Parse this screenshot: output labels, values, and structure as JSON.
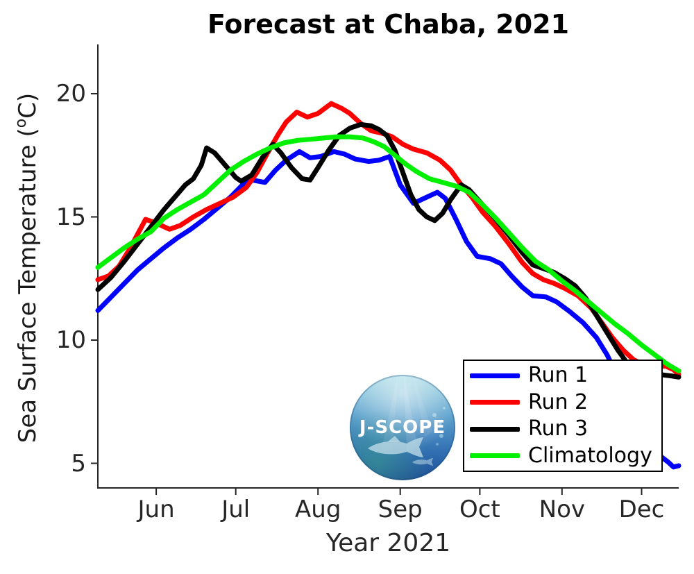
{
  "labels": {
    "ylabel_pre": "Sea Surface Temperature (",
    "ylabel_sup": "o",
    "ylabel_post": "C)"
  },
  "logo": {
    "text": "J-SCOPE"
  },
  "chart_data": {
    "type": "line",
    "title": "Forecast at Chaba, 2021",
    "xlabel": "Year 2021",
    "ylabel": "Sea Surface Temperature (°C)",
    "grid": false,
    "legend_position": "lower right",
    "axis_color": "#262626",
    "x_axis": {
      "unit": "day index (0 = left edge of axis, about May 10, 2021)",
      "lim": [
        0,
        219
      ],
      "ticks": [
        {
          "label": "Jun",
          "day": 22
        },
        {
          "label": "Jul",
          "day": 52
        },
        {
          "label": "Aug",
          "day": 83
        },
        {
          "label": "Sep",
          "day": 114
        },
        {
          "label": "Oct",
          "day": 144
        },
        {
          "label": "Nov",
          "day": 175
        },
        {
          "label": "Dec",
          "day": 205
        }
      ]
    },
    "y_axis": {
      "lim": [
        4,
        22
      ],
      "ticks": [
        20,
        15,
        10,
        5
      ]
    },
    "series": [
      {
        "name": "Run 1",
        "color": "#0000ff",
        "points": [
          [
            0,
            11.2
          ],
          [
            5,
            11.75
          ],
          [
            10,
            12.3
          ],
          [
            15,
            12.85
          ],
          [
            20,
            13.3
          ],
          [
            25,
            13.75
          ],
          [
            30,
            14.15
          ],
          [
            35,
            14.5
          ],
          [
            40,
            14.9
          ],
          [
            45,
            15.35
          ],
          [
            50,
            15.8
          ],
          [
            55,
            16.35
          ],
          [
            58,
            16.5
          ],
          [
            63,
            16.4
          ],
          [
            67,
            16.9
          ],
          [
            71,
            17.3
          ],
          [
            76,
            17.65
          ],
          [
            80,
            17.4
          ],
          [
            84,
            17.45
          ],
          [
            89,
            17.65
          ],
          [
            93,
            17.55
          ],
          [
            97,
            17.35
          ],
          [
            102,
            17.25
          ],
          [
            106,
            17.3
          ],
          [
            110,
            17.45
          ],
          [
            114,
            16.3
          ],
          [
            119,
            15.55
          ],
          [
            124,
            15.8
          ],
          [
            128,
            16.0
          ],
          [
            131,
            15.75
          ],
          [
            135,
            14.9
          ],
          [
            139,
            14.0
          ],
          [
            143,
            13.4
          ],
          [
            148,
            13.3
          ],
          [
            152,
            13.1
          ],
          [
            156,
            12.6
          ],
          [
            160,
            12.15
          ],
          [
            164,
            11.8
          ],
          [
            169,
            11.75
          ],
          [
            173,
            11.55
          ],
          [
            178,
            11.15
          ],
          [
            183,
            10.7
          ],
          [
            188,
            10.1
          ],
          [
            192,
            9.4
          ],
          [
            196,
            8.5
          ],
          [
            200,
            7.6
          ],
          [
            204,
            6.7
          ],
          [
            208,
            5.9
          ],
          [
            212,
            5.3
          ],
          [
            215,
            5.05
          ],
          [
            217,
            4.85
          ],
          [
            219,
            4.9
          ]
        ]
      },
      {
        "name": "Run 2",
        "color": "#ff0000",
        "points": [
          [
            0,
            12.45
          ],
          [
            4,
            12.6
          ],
          [
            8,
            13.0
          ],
          [
            12,
            13.7
          ],
          [
            15,
            14.3
          ],
          [
            18,
            14.9
          ],
          [
            22,
            14.75
          ],
          [
            27,
            14.5
          ],
          [
            31,
            14.65
          ],
          [
            36,
            15.0
          ],
          [
            41,
            15.3
          ],
          [
            46,
            15.55
          ],
          [
            51,
            15.8
          ],
          [
            56,
            16.2
          ],
          [
            60,
            16.8
          ],
          [
            64,
            17.6
          ],
          [
            68,
            18.35
          ],
          [
            71,
            18.85
          ],
          [
            75,
            19.25
          ],
          [
            79,
            19.05
          ],
          [
            83,
            19.2
          ],
          [
            88,
            19.6
          ],
          [
            92,
            19.4
          ],
          [
            95,
            19.2
          ],
          [
            99,
            18.8
          ],
          [
            103,
            18.5
          ],
          [
            107,
            18.4
          ],
          [
            111,
            18.25
          ],
          [
            115,
            17.95
          ],
          [
            119,
            17.75
          ],
          [
            124,
            17.6
          ],
          [
            129,
            17.3
          ],
          [
            133,
            16.9
          ],
          [
            137,
            16.3
          ],
          [
            141,
            15.8
          ],
          [
            145,
            15.2
          ],
          [
            150,
            14.6
          ],
          [
            155,
            13.9
          ],
          [
            160,
            13.15
          ],
          [
            164,
            12.7
          ],
          [
            168,
            12.45
          ],
          [
            172,
            12.3
          ],
          [
            176,
            12.1
          ],
          [
            181,
            11.8
          ],
          [
            186,
            11.3
          ],
          [
            190,
            10.7
          ],
          [
            194,
            10.1
          ],
          [
            198,
            9.6
          ],
          [
            202,
            9.2
          ],
          [
            206,
            9.0
          ],
          [
            210,
            8.9
          ],
          [
            214,
            8.95
          ],
          [
            217,
            8.8
          ],
          [
            219,
            8.6
          ]
        ]
      },
      {
        "name": "Run 3",
        "color": "#000000",
        "points": [
          [
            0,
            12.05
          ],
          [
            5,
            12.55
          ],
          [
            10,
            13.2
          ],
          [
            15,
            13.9
          ],
          [
            20,
            14.6
          ],
          [
            25,
            15.3
          ],
          [
            29,
            15.8
          ],
          [
            33,
            16.3
          ],
          [
            36,
            16.55
          ],
          [
            39,
            17.1
          ],
          [
            41,
            17.8
          ],
          [
            44,
            17.6
          ],
          [
            48,
            17.1
          ],
          [
            52,
            16.6
          ],
          [
            54,
            16.45
          ],
          [
            58,
            16.7
          ],
          [
            62,
            17.4
          ],
          [
            66,
            17.95
          ],
          [
            69,
            17.6
          ],
          [
            73,
            17.0
          ],
          [
            77,
            16.55
          ],
          [
            80,
            16.5
          ],
          [
            83,
            17.0
          ],
          [
            87,
            17.7
          ],
          [
            91,
            18.3
          ],
          [
            95,
            18.6
          ],
          [
            99,
            18.75
          ],
          [
            103,
            18.7
          ],
          [
            106,
            18.55
          ],
          [
            109,
            18.3
          ],
          [
            112,
            17.7
          ],
          [
            115,
            16.8
          ],
          [
            118,
            15.9
          ],
          [
            121,
            15.3
          ],
          [
            124,
            15.0
          ],
          [
            127,
            14.85
          ],
          [
            130,
            15.15
          ],
          [
            133,
            15.7
          ],
          [
            137,
            16.3
          ],
          [
            140,
            16.1
          ],
          [
            145,
            15.5
          ],
          [
            150,
            14.9
          ],
          [
            155,
            14.25
          ],
          [
            160,
            13.55
          ],
          [
            164,
            13.05
          ],
          [
            168,
            12.9
          ],
          [
            172,
            12.75
          ],
          [
            176,
            12.5
          ],
          [
            180,
            12.2
          ],
          [
            184,
            11.7
          ],
          [
            188,
            11.0
          ],
          [
            192,
            10.3
          ],
          [
            196,
            9.6
          ],
          [
            200,
            9.0
          ],
          [
            204,
            8.8
          ],
          [
            208,
            8.65
          ],
          [
            212,
            8.6
          ],
          [
            216,
            8.55
          ],
          [
            219,
            8.5
          ]
        ]
      },
      {
        "name": "Climatology",
        "color": "#00f000",
        "points": [
          [
            0,
            12.95
          ],
          [
            5,
            13.35
          ],
          [
            10,
            13.75
          ],
          [
            15,
            14.1
          ],
          [
            20,
            14.4
          ],
          [
            25,
            14.95
          ],
          [
            30,
            15.3
          ],
          [
            35,
            15.6
          ],
          [
            40,
            15.9
          ],
          [
            45,
            16.4
          ],
          [
            50,
            16.9
          ],
          [
            55,
            17.25
          ],
          [
            60,
            17.55
          ],
          [
            65,
            17.8
          ],
          [
            70,
            18.0
          ],
          [
            75,
            18.1
          ],
          [
            80,
            18.15
          ],
          [
            85,
            18.2
          ],
          [
            90,
            18.25
          ],
          [
            95,
            18.25
          ],
          [
            100,
            18.2
          ],
          [
            104,
            18.05
          ],
          [
            108,
            17.85
          ],
          [
            112,
            17.5
          ],
          [
            116,
            17.15
          ],
          [
            120,
            16.85
          ],
          [
            125,
            16.55
          ],
          [
            130,
            16.4
          ],
          [
            135,
            16.25
          ],
          [
            140,
            16.0
          ],
          [
            145,
            15.5
          ],
          [
            150,
            14.95
          ],
          [
            155,
            14.35
          ],
          [
            160,
            13.75
          ],
          [
            165,
            13.2
          ],
          [
            170,
            12.85
          ],
          [
            175,
            12.4
          ],
          [
            180,
            12.0
          ],
          [
            185,
            11.55
          ],
          [
            190,
            11.1
          ],
          [
            195,
            10.65
          ],
          [
            200,
            10.25
          ],
          [
            205,
            9.8
          ],
          [
            210,
            9.4
          ],
          [
            215,
            9.0
          ],
          [
            219,
            8.75
          ]
        ]
      }
    ]
  }
}
